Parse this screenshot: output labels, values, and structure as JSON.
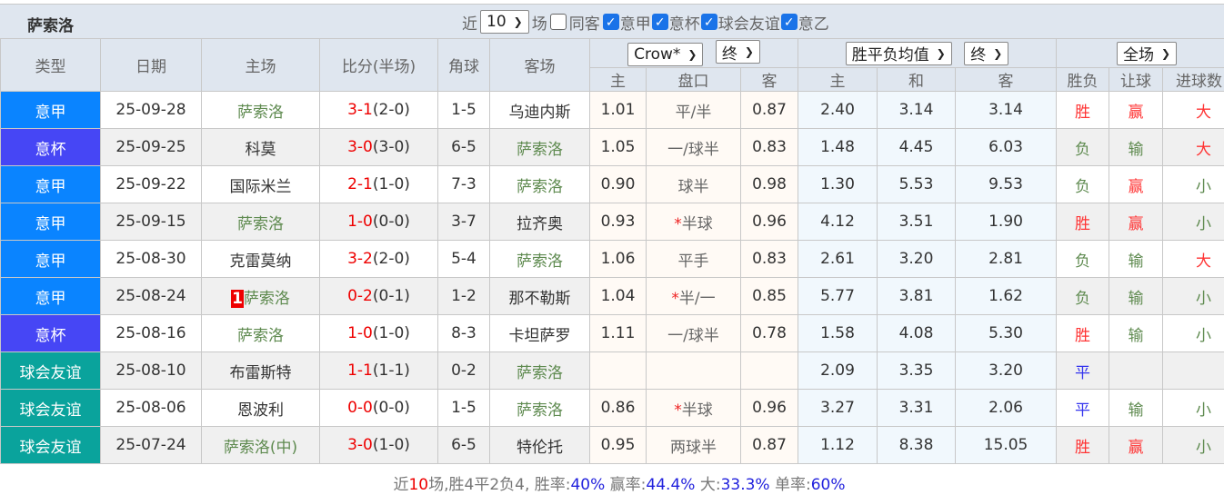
{
  "title": "萨索洛",
  "filters": {
    "recent_label": "近",
    "recent_value": "10",
    "games_label": "场",
    "same_home_label": "同客",
    "same_home_checked": false,
    "leagues": [
      {
        "label": "意甲",
        "checked": true
      },
      {
        "label": "意杯",
        "checked": true
      },
      {
        "label": "球会友谊",
        "checked": true
      },
      {
        "label": "意乙",
        "checked": true
      }
    ]
  },
  "headers": {
    "type": "类型",
    "date": "日期",
    "home": "主场",
    "score": "比分(半场)",
    "corner": "角球",
    "away": "客场",
    "company_select": "Crow*",
    "time_select1": "终",
    "odds_select": "胜平负均值",
    "time_select2": "终",
    "period_select": "全场",
    "ah": [
      "主",
      "盘口",
      "客"
    ],
    "eu": [
      "主",
      "和",
      "客"
    ],
    "res": [
      "胜负",
      "让球",
      "进球数"
    ]
  },
  "colors": {
    "意甲": "#0a84ff",
    "意杯": "#4646f5",
    "球会友谊": "#0aa39c"
  },
  "rows": [
    {
      "type": "意甲",
      "date": "25-09-28",
      "home": "萨索洛",
      "home_green": true,
      "score": "3-1",
      "ht": "(2-0)",
      "corner": "1-5",
      "away": "乌迪内斯",
      "away_green": false,
      "ah": [
        "1.01",
        "平/半",
        "0.87"
      ],
      "star": false,
      "eu": [
        "2.40",
        "3.14",
        "3.14"
      ],
      "res": [
        "胜",
        "赢",
        "大"
      ]
    },
    {
      "type": "意杯",
      "date": "25-09-25",
      "home": "科莫",
      "home_green": false,
      "score": "3-0",
      "ht": "(3-0)",
      "corner": "6-5",
      "away": "萨索洛",
      "away_green": true,
      "ah": [
        "1.05",
        "一/球半",
        "0.83"
      ],
      "star": false,
      "eu": [
        "1.48",
        "4.45",
        "6.03"
      ],
      "res": [
        "负",
        "输",
        "大"
      ]
    },
    {
      "type": "意甲",
      "date": "25-09-22",
      "home": "国际米兰",
      "home_green": false,
      "score": "2-1",
      "ht": "(1-0)",
      "corner": "7-3",
      "away": "萨索洛",
      "away_green": true,
      "ah": [
        "0.90",
        "球半",
        "0.98"
      ],
      "star": false,
      "eu": [
        "1.30",
        "5.53",
        "9.53"
      ],
      "res": [
        "负",
        "赢",
        "小"
      ]
    },
    {
      "type": "意甲",
      "date": "25-09-15",
      "home": "萨索洛",
      "home_green": true,
      "score": "1-0",
      "ht": "(0-0)",
      "corner": "3-7",
      "away": "拉齐奥",
      "away_green": false,
      "ah": [
        "0.93",
        "半球",
        "0.96"
      ],
      "star": true,
      "eu": [
        "4.12",
        "3.51",
        "1.90"
      ],
      "res": [
        "胜",
        "赢",
        "小"
      ]
    },
    {
      "type": "意甲",
      "date": "25-08-30",
      "home": "克雷莫纳",
      "home_green": false,
      "score": "3-2",
      "ht": "(2-0)",
      "corner": "5-4",
      "away": "萨索洛",
      "away_green": true,
      "ah": [
        "1.06",
        "平手",
        "0.83"
      ],
      "star": false,
      "eu": [
        "2.61",
        "3.20",
        "2.81"
      ],
      "res": [
        "负",
        "输",
        "大"
      ]
    },
    {
      "type": "意甲",
      "date": "25-08-24",
      "home": "萨索洛",
      "home_green": true,
      "badge": "1",
      "score": "0-2",
      "ht": "(0-1)",
      "corner": "1-2",
      "away": "那不勒斯",
      "away_green": false,
      "ah": [
        "1.04",
        "半/一",
        "0.85"
      ],
      "star": true,
      "eu": [
        "5.77",
        "3.81",
        "1.62"
      ],
      "res": [
        "负",
        "输",
        "小"
      ]
    },
    {
      "type": "意杯",
      "date": "25-08-16",
      "home": "萨索洛",
      "home_green": true,
      "score": "1-0",
      "ht": "(1-0)",
      "corner": "8-3",
      "away": "卡坦萨罗",
      "away_green": false,
      "ah": [
        "1.11",
        "一/球半",
        "0.78"
      ],
      "star": false,
      "eu": [
        "1.58",
        "4.08",
        "5.30"
      ],
      "res": [
        "胜",
        "输",
        "小"
      ]
    },
    {
      "type": "球会友谊",
      "date": "25-08-10",
      "home": "布雷斯特",
      "home_green": false,
      "score": "1-1",
      "ht": "(1-1)",
      "corner": "0-2",
      "away": "萨索洛",
      "away_green": true,
      "ah": [
        "",
        "",
        ""
      ],
      "star": false,
      "eu": [
        "2.09",
        "3.35",
        "3.20"
      ],
      "res": [
        "平",
        "",
        ""
      ]
    },
    {
      "type": "球会友谊",
      "date": "25-08-06",
      "home": "恩波利",
      "home_green": false,
      "score": "0-0",
      "ht": "(0-0)",
      "corner": "1-5",
      "away": "萨索洛",
      "away_green": true,
      "ah": [
        "0.86",
        "半球",
        "0.96"
      ],
      "star": true,
      "eu": [
        "3.27",
        "3.31",
        "2.06"
      ],
      "res": [
        "平",
        "输",
        "小"
      ]
    },
    {
      "type": "球会友谊",
      "date": "25-07-24",
      "home": "萨索洛(中)",
      "home_green": true,
      "score": "3-0",
      "ht": "(1-0)",
      "corner": "6-5",
      "away": "特伦托",
      "away_green": false,
      "ah": [
        "0.95",
        "两球半",
        "0.87"
      ],
      "star": false,
      "eu": [
        "1.12",
        "8.38",
        "15.05"
      ],
      "res": [
        "胜",
        "赢",
        "小"
      ]
    }
  ],
  "footer": {
    "p1": "近",
    "n": "10",
    "p2": "场,胜4平2负4, 胜率:",
    "win_rate": "40%",
    "p3": " 赢率:",
    "cover_rate": "44.4%",
    "p4": " 大:",
    "over_rate": "33.3%",
    "p5": " 单率:",
    "odd_rate": "60%"
  }
}
